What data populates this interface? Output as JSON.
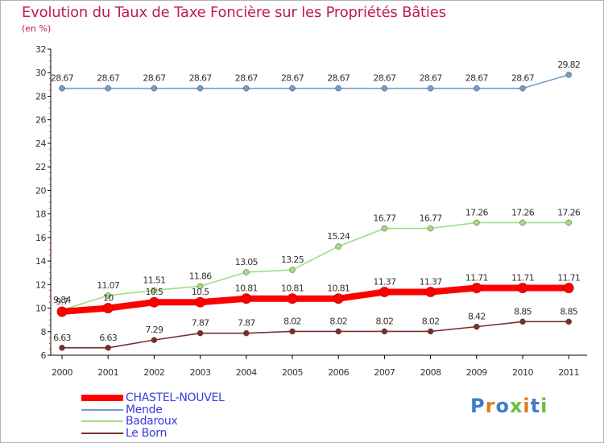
{
  "title": "Evolution du Taux de Taxe Foncière sur les Propriétés Bâties",
  "unit": "(en %)",
  "logo": {
    "text": "Proxiti",
    "colors": [
      "#3d7ec9",
      "#e07b1b",
      "#3d7ec9",
      "#6abf3b",
      "#e07b1b",
      "#3d7ec9",
      "#6abf3b"
    ]
  },
  "chart_data": {
    "type": "line",
    "x": [
      "2000",
      "2001",
      "2002",
      "2003",
      "2004",
      "2005",
      "2006",
      "2007",
      "2008",
      "2009",
      "2010",
      "2011"
    ],
    "ylim": [
      6,
      32
    ],
    "yticks": [
      "6",
      "8",
      "10",
      "12",
      "14",
      "16",
      "18",
      "20",
      "22",
      "24",
      "26",
      "28",
      "30",
      "32"
    ],
    "grid": false,
    "legend_position": "bottom-left",
    "series": [
      {
        "name": "Mende",
        "color": "#6e9fd0",
        "values": [
          28.67,
          28.67,
          28.67,
          28.67,
          28.67,
          28.67,
          28.67,
          28.67,
          28.67,
          28.67,
          28.67,
          29.82
        ],
        "labels": [
          "28.67",
          "28.67",
          "28.67",
          "28.67",
          "28.67",
          "28.67",
          "28.67",
          "28.67",
          "28.67",
          "28.67",
          "28.67",
          "29.82"
        ]
      },
      {
        "name": "Badaroux",
        "color": "#a3dc82",
        "values": [
          9.84,
          11.07,
          11.51,
          11.86,
          13.05,
          13.25,
          15.24,
          16.77,
          16.77,
          17.26,
          17.26,
          17.26
        ],
        "labels": [
          "9.84",
          "11.07",
          "11.51",
          "11.86",
          "13.05",
          "13.25",
          "15.24",
          "16.77",
          "16.77",
          "17.26",
          "17.26",
          "17.26"
        ]
      },
      {
        "name": "Le Born",
        "color": "#7a2f2f",
        "values": [
          6.63,
          6.63,
          7.29,
          7.87,
          7.87,
          8.02,
          8.02,
          8.02,
          8.02,
          8.42,
          8.85,
          8.85
        ],
        "labels": [
          "6.63",
          "6.63",
          "7.29",
          "7.87",
          "7.87",
          "8.02",
          "8.02",
          "8.02",
          "8.02",
          "8.42",
          "8.85",
          "8.85"
        ]
      },
      {
        "name": "CHASTEL-NOUVEL",
        "color": "#ff0000",
        "values": [
          9.7,
          10.0,
          10.5,
          10.5,
          10.81,
          10.81,
          10.81,
          11.37,
          11.37,
          11.71,
          11.71,
          11.71
        ],
        "labels": [
          "9.7",
          "10",
          "10.5",
          "10.5",
          "10.81",
          "10.81",
          "10.81",
          "11.37",
          "11.37",
          "11.71",
          "11.71",
          "11.71"
        ]
      }
    ],
    "legend_order": [
      "CHASTEL-NOUVEL",
      "Mende",
      "Badaroux",
      "Le Born"
    ]
  }
}
